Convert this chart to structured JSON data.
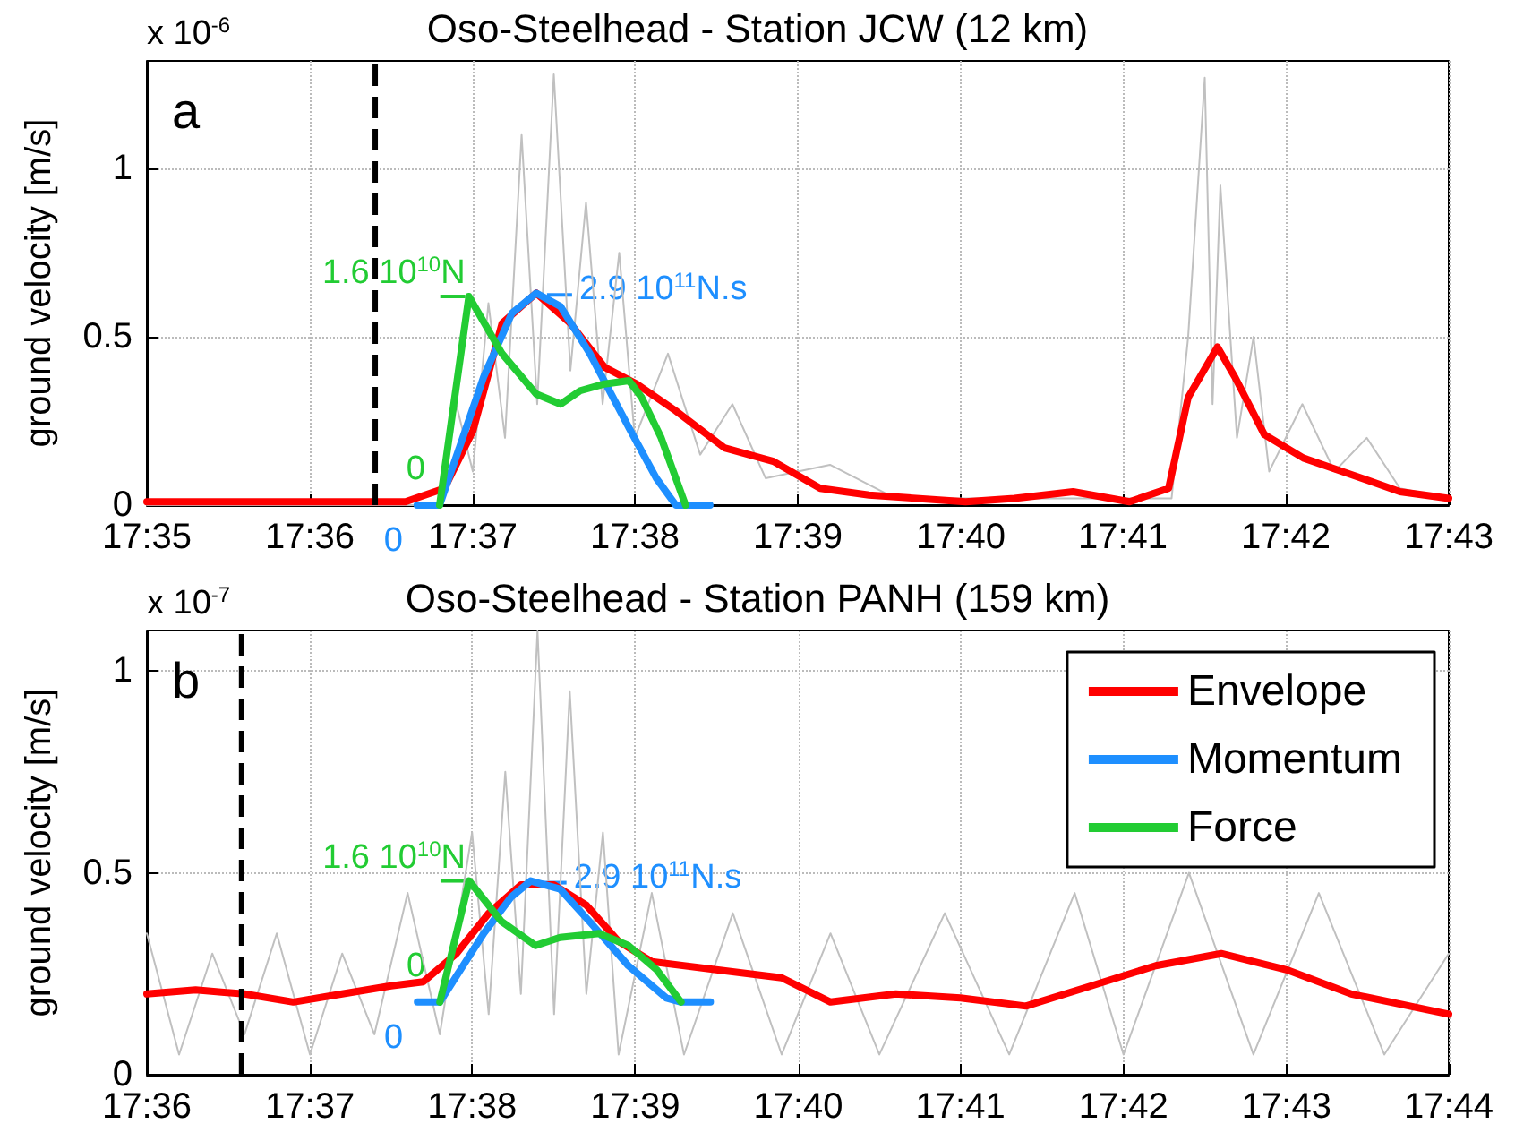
{
  "chart_data": [
    {
      "type": "line",
      "title": "Oso-Steelhead - Station JCW (12 km)",
      "ylabel": "ground velocity [m/s]",
      "marker": "none",
      "grid": true,
      "xlim": [
        17.5833,
        17.7167
      ],
      "xticks": [
        {
          "value": 17.5833,
          "label": "17:35"
        },
        {
          "value": 17.6,
          "label": "17:36"
        },
        {
          "value": 17.6167,
          "label": "17:37"
        },
        {
          "value": 17.6333,
          "label": "17:38"
        },
        {
          "value": 17.65,
          "label": "17:39"
        },
        {
          "value": 17.6667,
          "label": "17:40"
        },
        {
          "value": 17.6833,
          "label": "17:41"
        },
        {
          "value": 17.7,
          "label": "17:42"
        },
        {
          "value": 17.7167,
          "label": "17:43"
        }
      ],
      "ylim": [
        0,
        1.32
      ],
      "yticks": [
        0,
        0.5,
        1
      ],
      "series": [
        {
          "color": "#c0c0c0",
          "x": [
            17.5833,
            17.6133,
            17.615,
            17.6167,
            17.6183,
            17.62,
            17.6217,
            17.6233,
            17.625,
            17.6267,
            17.6283,
            17.63,
            17.6317,
            17.6333,
            17.6367,
            17.64,
            17.6433,
            17.6467,
            17.6533,
            17.66,
            17.6883,
            17.69,
            17.6917,
            17.6925,
            17.6933,
            17.695,
            17.6967,
            17.6983,
            17.7017,
            17.705,
            17.7083,
            17.7117,
            17.7167
          ],
          "values": [
            0,
            0,
            0.3,
            0.1,
            0.6,
            0.2,
            1.1,
            0.3,
            1.28,
            0.4,
            0.9,
            0.3,
            0.75,
            0.2,
            0.45,
            0.15,
            0.3,
            0.08,
            0.12,
            0.02,
            0.02,
            0.5,
            1.27,
            0.3,
            0.95,
            0.2,
            0.5,
            0.1,
            0.3,
            0.1,
            0.2,
            0.05,
            0.02
          ]
        },
        {
          "color": "#ff0000",
          "x": [
            17.5833,
            17.6098,
            17.6138,
            17.6167,
            17.6197,
            17.6232,
            17.6267,
            17.6302,
            17.6335,
            17.6375,
            17.6425,
            17.6475,
            17.6523,
            17.6573,
            17.6672,
            17.6722,
            17.6782,
            17.684,
            17.688,
            17.69,
            17.693,
            17.6948,
            17.6978,
            17.7018,
            17.7068,
            17.7117,
            17.7167
          ],
          "values": [
            0.01,
            0.01,
            0.05,
            0.22,
            0.54,
            0.63,
            0.54,
            0.41,
            0.36,
            0.28,
            0.17,
            0.13,
            0.05,
            0.03,
            0.01,
            0.02,
            0.04,
            0.01,
            0.05,
            0.32,
            0.47,
            0.38,
            0.21,
            0.14,
            0.09,
            0.04,
            0.02
          ]
        },
        {
          "color": "#1e8fff",
          "x": [
            17.611,
            17.6133,
            17.6178,
            17.6207,
            17.6232,
            17.6257,
            17.6287,
            17.6327,
            17.6355,
            17.6375,
            17.641
          ],
          "values": [
            0,
            0,
            0.38,
            0.57,
            0.63,
            0.59,
            0.45,
            0.23,
            0.08,
            0,
            0
          ]
        },
        {
          "color": "#22cc33",
          "x": [
            17.6133,
            17.6163,
            17.6197,
            17.6232,
            17.6257,
            17.6277,
            17.6302,
            17.6327,
            17.634,
            17.636,
            17.6385
          ],
          "values": [
            0,
            0.62,
            0.45,
            0.33,
            0.3,
            0.34,
            0.36,
            0.37,
            0.32,
            0.2,
            0
          ]
        }
      ],
      "ref_lines": [
        {
          "axis": "x",
          "value": 17.6067,
          "color": "#000000",
          "line_style": "dashed"
        }
      ],
      "annotations": [
        "x 10$^{-6}$",
        "a",
        {
          "text": "1.6 10$^{10}$N",
          "x": 17.6163,
          "y": 0.62
        },
        {
          "text": "2.9 10$^{11}$N.s",
          "x": 17.6232,
          "y": 0.63
        },
        {
          "text": "0",
          "x": 17.6133,
          "y": 0
        },
        {
          "text": "0",
          "x": 17.611,
          "y": 0
        }
      ]
    },
    {
      "type": "line",
      "title": "Oso-Steelhead - Station PANH (159 km)",
      "ylabel": "ground velocity [m/s]",
      "marker": "none",
      "grid": true,
      "legend": "top right",
      "xlim": [
        17.6,
        17.7333
      ],
      "xticks": [
        {
          "value": 17.6,
          "label": "17:36"
        },
        {
          "value": 17.6167,
          "label": "17:37"
        },
        {
          "value": 17.6333,
          "label": "17:38"
        },
        {
          "value": 17.65,
          "label": "17:39"
        },
        {
          "value": 17.6667,
          "label": "17:40"
        },
        {
          "value": 17.6833,
          "label": "17:41"
        },
        {
          "value": 17.7,
          "label": "17:42"
        },
        {
          "value": 17.7167,
          "label": "17:43"
        },
        {
          "value": 17.7333,
          "label": "17:44"
        }
      ],
      "ylim": [
        0,
        1.1
      ],
      "yticks": [
        0,
        0.5,
        1
      ],
      "series": [
        {
          "color": "#c0c0c0",
          "x": [
            17.6,
            17.6033,
            17.6067,
            17.61,
            17.6133,
            17.6167,
            17.62,
            17.6233,
            17.6267,
            17.63,
            17.6333,
            17.635,
            17.6367,
            17.6383,
            17.64,
            17.6417,
            17.6433,
            17.645,
            17.6467,
            17.6483,
            17.6517,
            17.655,
            17.66,
            17.665,
            17.67,
            17.675,
            17.6817,
            17.6883,
            17.695,
            17.7,
            17.7067,
            17.7133,
            17.72,
            17.7267,
            17.7333
          ],
          "values": [
            0.35,
            0.05,
            0.3,
            0.1,
            0.35,
            0.05,
            0.3,
            0.1,
            0.45,
            0.1,
            0.6,
            0.15,
            0.75,
            0.2,
            1.1,
            0.15,
            0.95,
            0.2,
            0.6,
            0.05,
            0.45,
            0.05,
            0.4,
            0.05,
            0.35,
            0.05,
            0.4,
            0.05,
            0.45,
            0.05,
            0.5,
            0.05,
            0.45,
            0.05,
            0.3
          ]
        },
        {
          "name": "Envelope",
          "color": "#ff0000",
          "x": [
            17.6,
            17.605,
            17.61,
            17.615,
            17.62,
            17.625,
            17.6283,
            17.6317,
            17.635,
            17.6383,
            17.6417,
            17.645,
            17.6483,
            17.6517,
            17.6583,
            17.665,
            17.67,
            17.6767,
            17.6833,
            17.69,
            17.6967,
            17.7033,
            17.71,
            17.7167,
            17.7233,
            17.7333
          ],
          "values": [
            0.2,
            0.21,
            0.2,
            0.18,
            0.2,
            0.22,
            0.23,
            0.3,
            0.4,
            0.47,
            0.47,
            0.42,
            0.33,
            0.28,
            0.26,
            0.24,
            0.18,
            0.2,
            0.19,
            0.17,
            0.22,
            0.27,
            0.3,
            0.26,
            0.2,
            0.15
          ]
        },
        {
          "name": "Momentum",
          "color": "#1e8fff",
          "x": [
            17.6277,
            17.63,
            17.6345,
            17.6373,
            17.6393,
            17.6423,
            17.6453,
            17.6493,
            17.6532,
            17.6547,
            17.6577
          ],
          "values": [
            0.18,
            0.18,
            0.35,
            0.44,
            0.48,
            0.46,
            0.38,
            0.27,
            0.19,
            0.18,
            0.18
          ]
        },
        {
          "name": "Force",
          "color": "#22cc33",
          "x": [
            17.63,
            17.633,
            17.6363,
            17.6398,
            17.6423,
            17.6463,
            17.6493,
            17.6522,
            17.6547
          ],
          "values": [
            0.18,
            0.48,
            0.38,
            0.32,
            0.34,
            0.35,
            0.32,
            0.26,
            0.18
          ]
        }
      ],
      "ref_lines": [
        {
          "axis": "x",
          "value": 17.6097,
          "color": "#000000",
          "line_style": "dashed"
        }
      ],
      "annotations": [
        "x 10$^{-7}$",
        "b",
        {
          "text": "1.6 10$^{10}$N",
          "x": 17.633,
          "y": 0.48
        },
        {
          "text": "2.9 10$^{11}$N.s",
          "x": 17.6393,
          "y": 0.48
        },
        {
          "text": "0",
          "x": 17.63,
          "y": 0.18
        },
        {
          "text": "0",
          "x": 17.6277,
          "y": 0.18
        }
      ]
    }
  ]
}
